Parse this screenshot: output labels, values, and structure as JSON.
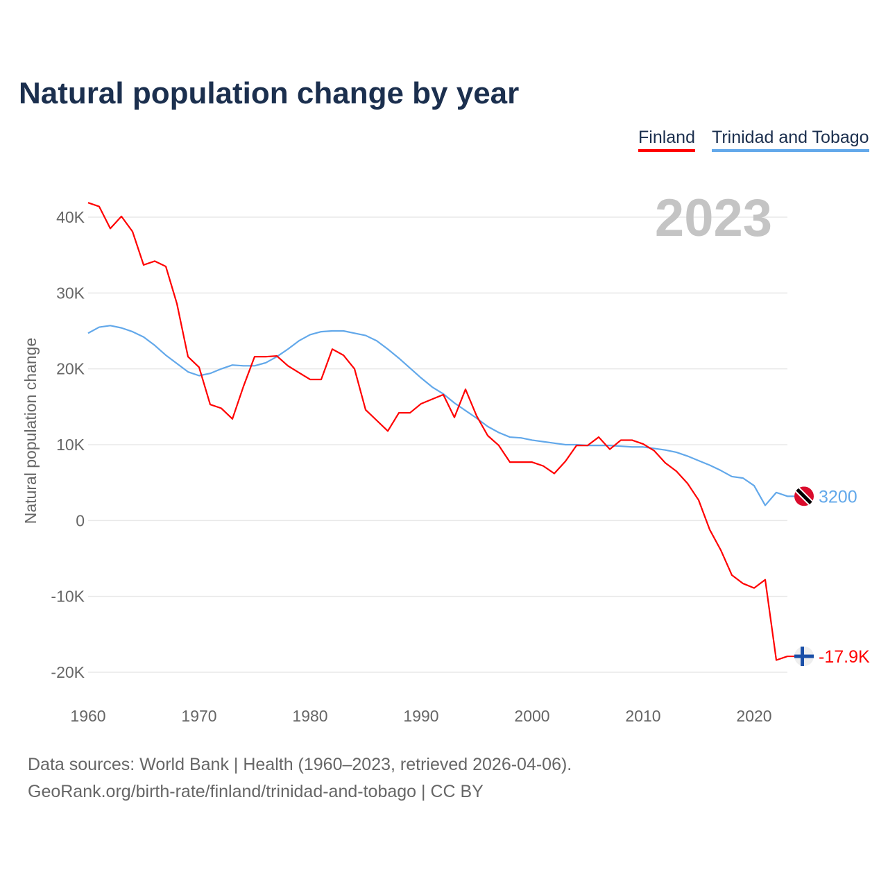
{
  "chart_data": {
    "type": "line",
    "title": "Natural population change by year",
    "xlabel": "",
    "ylabel": "Natural population change",
    "xlim": [
      1960,
      2023
    ],
    "ylim": [
      -20000,
      40000
    ],
    "x_ticks": [
      1960,
      1970,
      1980,
      1990,
      2000,
      2010,
      2020
    ],
    "x_tick_labels": [
      "1960",
      "1970",
      "1980",
      "1990",
      "2000",
      "2010",
      "2020"
    ],
    "y_ticks": [
      40000,
      30000,
      20000,
      10000,
      0,
      -10000,
      -20000
    ],
    "y_tick_labels": [
      "40K",
      "30K",
      "20K",
      "10K",
      "0",
      "-10K",
      "-20K"
    ],
    "grid": true,
    "legend_position": "top-right",
    "year_label": "2023",
    "x": [
      1960,
      1961,
      1962,
      1963,
      1964,
      1965,
      1966,
      1967,
      1968,
      1969,
      1970,
      1971,
      1972,
      1973,
      1974,
      1975,
      1976,
      1977,
      1978,
      1979,
      1980,
      1981,
      1982,
      1983,
      1984,
      1985,
      1986,
      1987,
      1988,
      1989,
      1990,
      1991,
      1992,
      1993,
      1994,
      1995,
      1996,
      1997,
      1998,
      1999,
      2000,
      2001,
      2002,
      2003,
      2004,
      2005,
      2006,
      2007,
      2008,
      2009,
      2010,
      2011,
      2012,
      2013,
      2014,
      2015,
      2016,
      2017,
      2018,
      2019,
      2020,
      2021,
      2022,
      2023
    ],
    "series": [
      {
        "name": "Finland",
        "color": "#ff0000",
        "end_label": "-17.9K",
        "flag": "finland-flag",
        "values": [
          41900,
          41400,
          38500,
          40100,
          38100,
          33700,
          34200,
          33500,
          28600,
          21600,
          20200,
          15300,
          14800,
          13400,
          17700,
          21600,
          21600,
          21700,
          20400,
          19500,
          18600,
          18600,
          22600,
          21800,
          20000,
          14600,
          13200,
          11800,
          14200,
          14200,
          15400,
          16000,
          16600,
          13600,
          17300,
          13800,
          11200,
          9900,
          7700,
          7700,
          7700,
          7200,
          6200,
          7800,
          9900,
          9900,
          11000,
          9400,
          10600,
          10600,
          10100,
          9200,
          7600,
          6500,
          4900,
          2700,
          -1200,
          -3900,
          -7200,
          -8300,
          -8900,
          -7800,
          -18400,
          -17900
        ]
      },
      {
        "name": "Trinidad and Tobago",
        "color": "#62a8ea",
        "end_label": "3200",
        "flag": "trinidad-and-tobago-flag",
        "values": [
          24700,
          25500,
          25700,
          25400,
          24900,
          24200,
          23100,
          21800,
          20700,
          19600,
          19100,
          19400,
          20000,
          20500,
          20400,
          20400,
          20800,
          21600,
          22600,
          23700,
          24500,
          24900,
          25000,
          25000,
          24700,
          24400,
          23700,
          22600,
          21400,
          20100,
          18800,
          17600,
          16700,
          15500,
          14500,
          13500,
          12400,
          11600,
          11000,
          10900,
          10600,
          10400,
          10200,
          10000,
          10000,
          9900,
          9900,
          9900,
          9800,
          9700,
          9700,
          9500,
          9300,
          9000,
          8500,
          7900,
          7300,
          6600,
          5800,
          5600,
          4600,
          2000,
          3700,
          3200
        ]
      }
    ]
  },
  "footer": {
    "source_line": "Data sources: World Bank | Health (1960–2023, retrieved 2026-04-06).",
    "url_line": "GeoRank.org/birth-rate/finland/trinidad-and-tobago | CC BY"
  }
}
